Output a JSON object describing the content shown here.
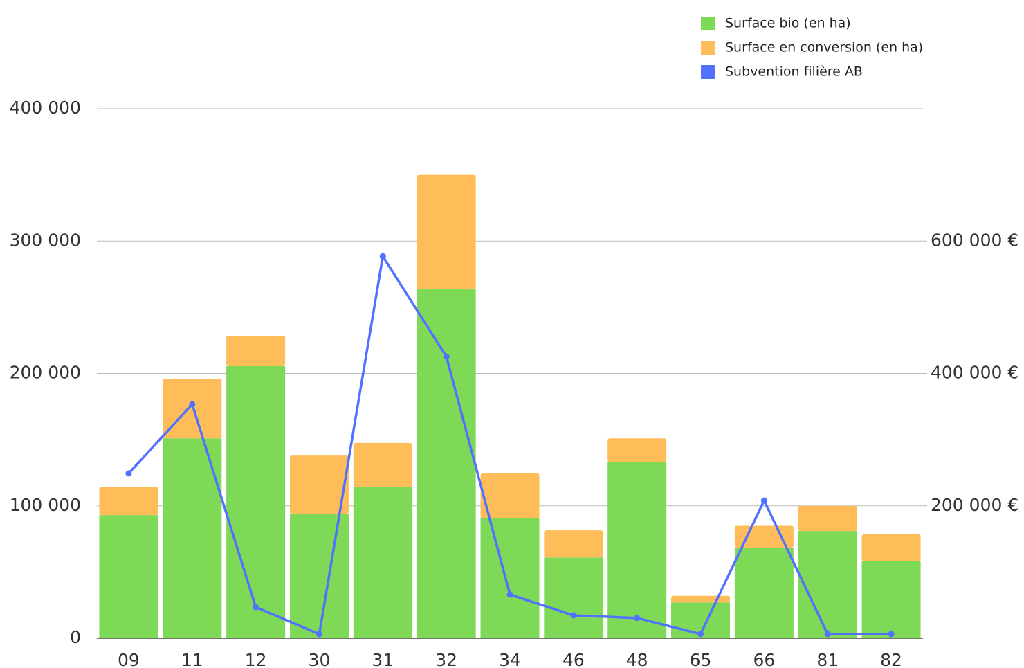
{
  "chart_data": {
    "type": "bar-line",
    "categories": [
      "09",
      "11",
      "12",
      "30",
      "31",
      "32",
      "34",
      "46",
      "48",
      "65",
      "66",
      "81",
      "82"
    ],
    "series": [
      {
        "name": "Surface bio (en ha)",
        "color": "#7ed957",
        "type": "bar",
        "stack": true,
        "values": [
          93000,
          151000,
          205500,
          94000,
          114000,
          263500,
          90500,
          61000,
          133000,
          27000,
          68500,
          81000,
          58500
        ]
      },
      {
        "name": "Surface en conversion (en ha)",
        "color": "#ffbd59",
        "type": "bar",
        "stack": true,
        "values": [
          21500,
          45000,
          23000,
          44000,
          33500,
          86500,
          34000,
          20500,
          18000,
          5000,
          16500,
          19000,
          20000
        ]
      },
      {
        "name": "Subvention filière AB",
        "color": "#5271ff",
        "type": "line",
        "axis": "y2",
        "values": [
          249000,
          353500,
          47000,
          6300,
          577000,
          425500,
          66000,
          34500,
          30500,
          6300,
          208000,
          6300,
          6300
        ]
      }
    ],
    "ylim": [
      0,
      400000
    ],
    "yticks": [
      0,
      {
        "value": 100000,
        "label": "100 000"
      },
      {
        "value": 200000,
        "label": "200 000"
      },
      {
        "value": 300000,
        "label": "300 000"
      },
      {
        "value": 400000,
        "label": "400 000"
      }
    ],
    "y2lim": [
      0,
      800000
    ],
    "y2ticks": [
      {
        "value": 200000,
        "label": "200 000 €"
      },
      {
        "value": 400000,
        "label": "400 000 €"
      },
      {
        "value": 600000,
        "label": "600 000 €"
      }
    ],
    "grid": true,
    "legend": "top-right"
  }
}
